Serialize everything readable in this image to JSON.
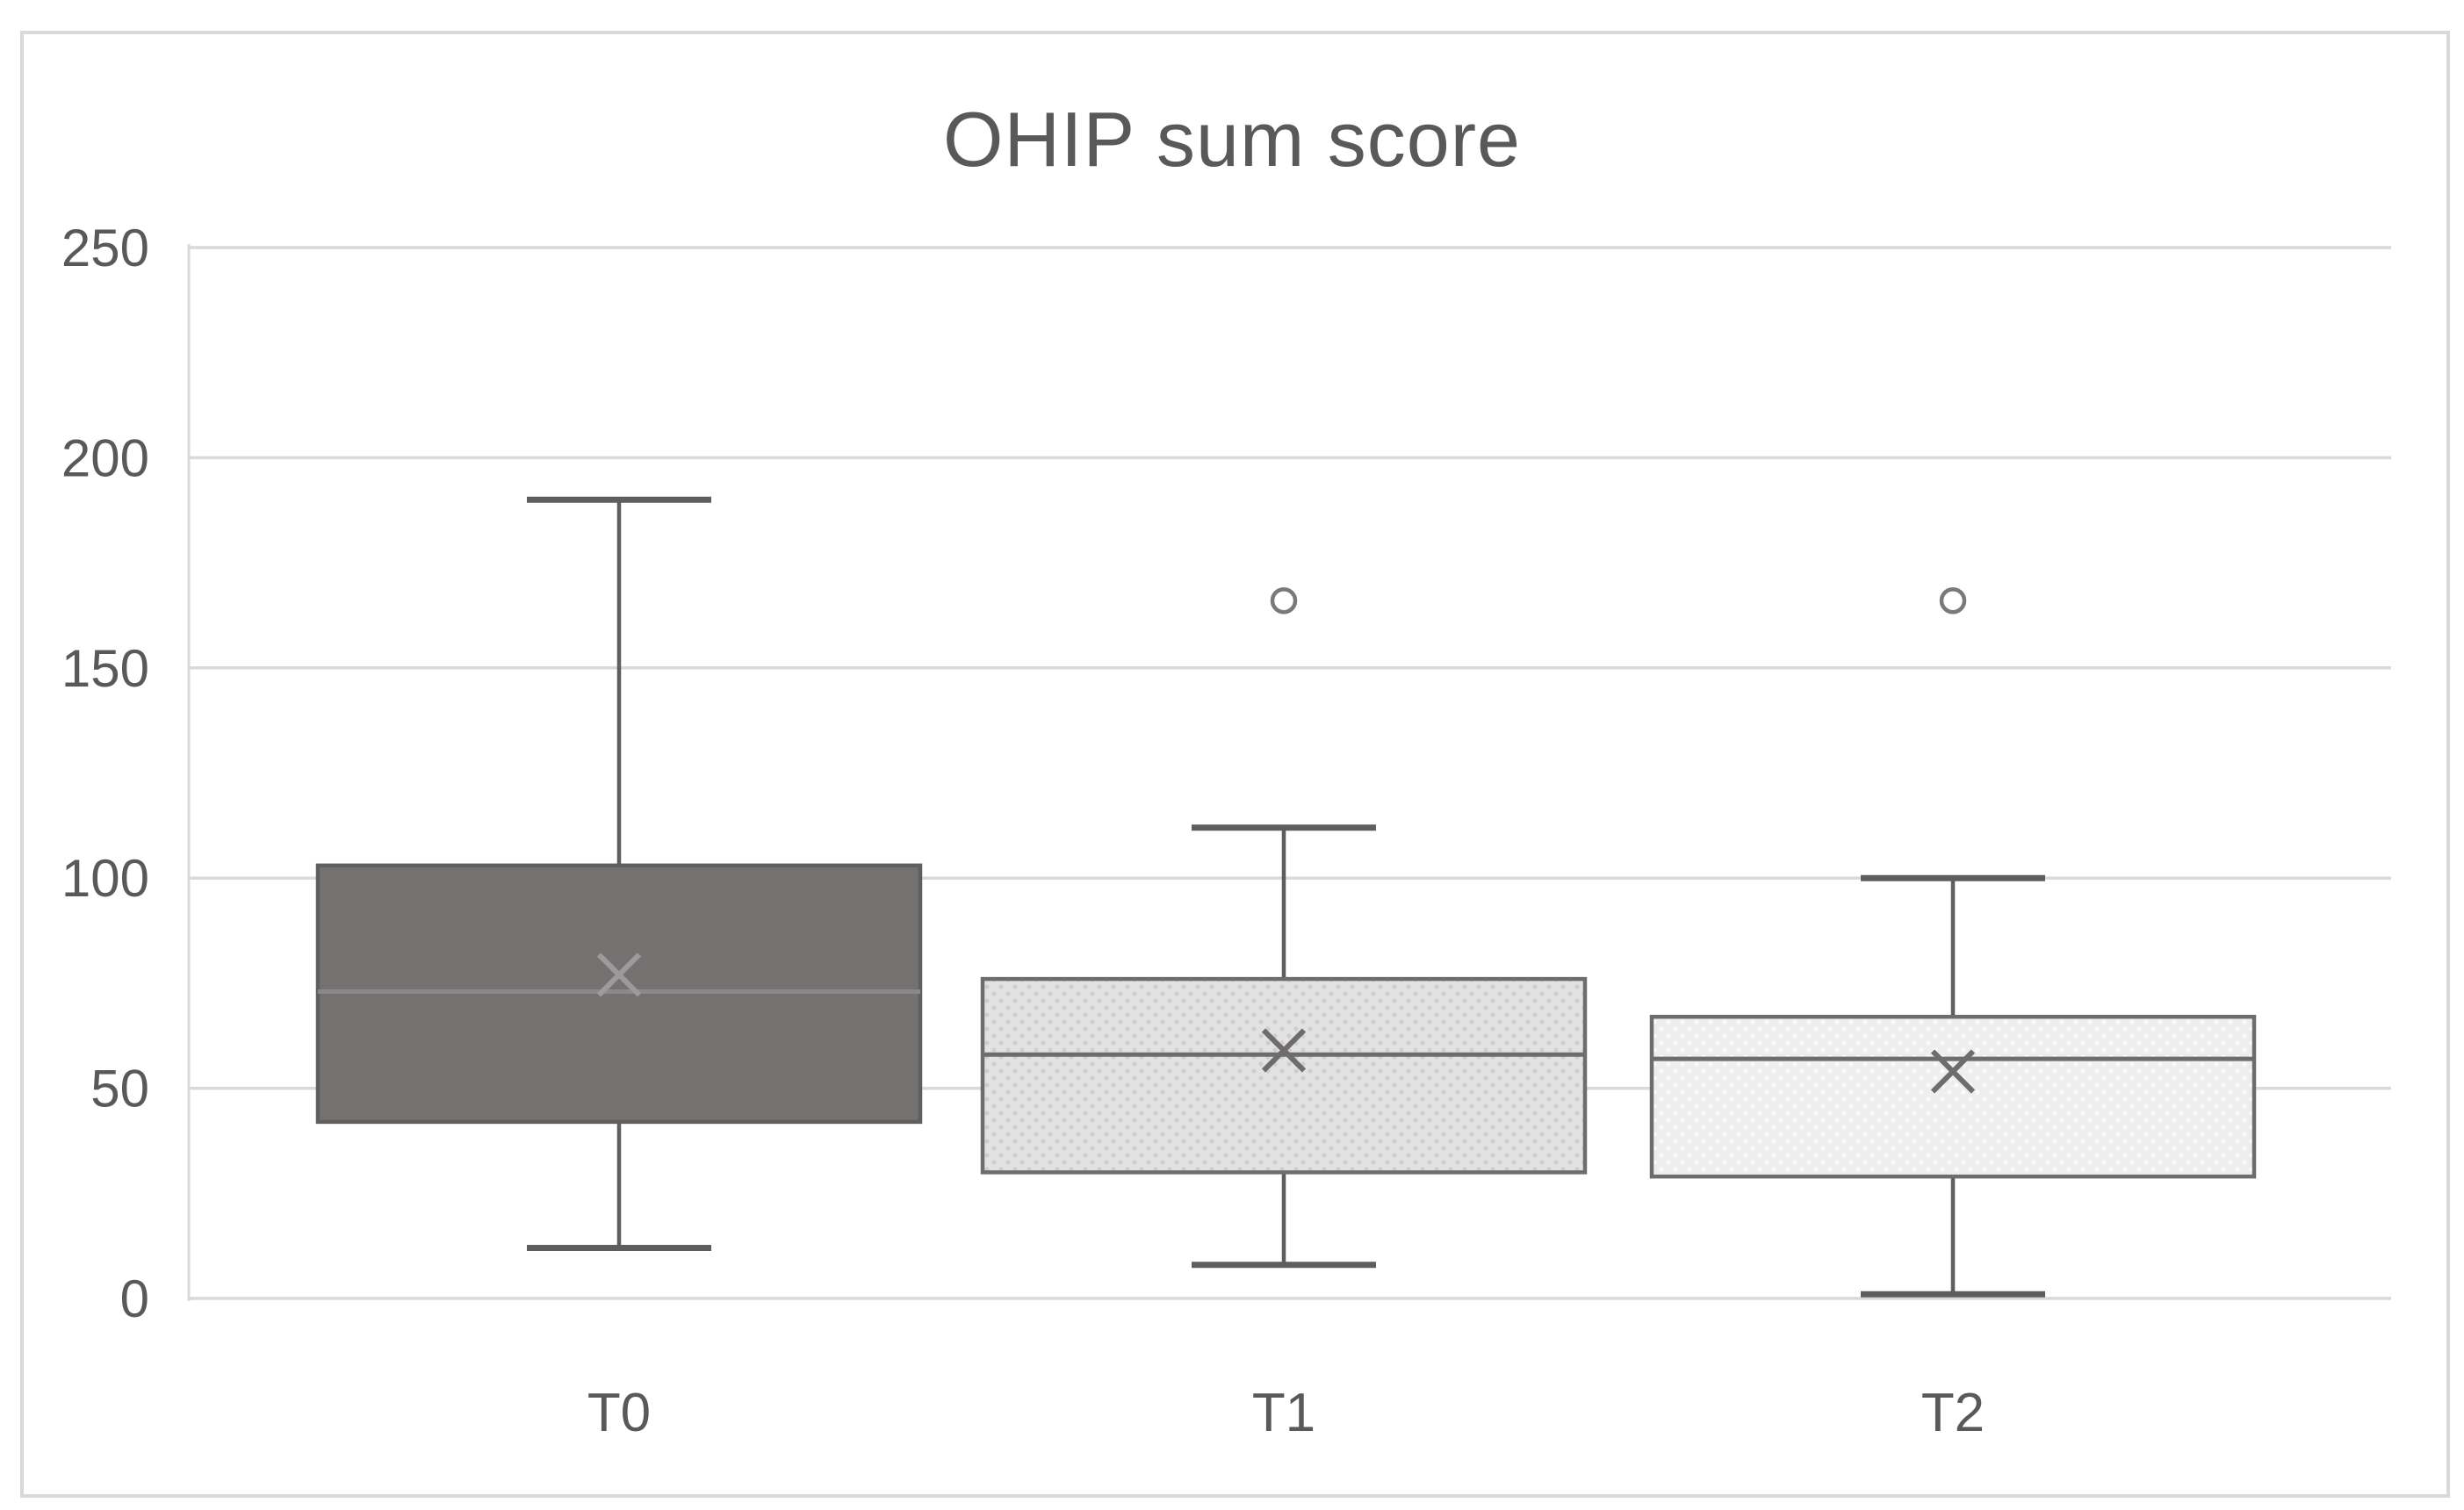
{
  "chart_data": {
    "type": "boxplot",
    "title": "OHIP sum score",
    "categories": [
      "T0",
      "T1",
      "T2"
    ],
    "xlabel": "",
    "ylabel": "",
    "ylim": [
      0,
      250
    ],
    "yticks": [
      0,
      50,
      100,
      150,
      200,
      250
    ],
    "grid": true,
    "legend": "none",
    "boxes": [
      {
        "label": "T0",
        "min": 12,
        "q1": 42,
        "median": 73,
        "mean": 77,
        "q3": 103,
        "max": 190,
        "outliers": [],
        "pattern": "solid",
        "fill": "#747171",
        "dot_color": "#747171",
        "border": "#615e5e",
        "median_color": "#8a8888",
        "mean_color": "#9c9a9a",
        "whisker_color": "#5f5d5d"
      },
      {
        "label": "T1",
        "min": 8,
        "q1": 30,
        "median": 58,
        "mean": 59,
        "q3": 76,
        "max": 112,
        "outliers": [
          166
        ],
        "pattern": "dots",
        "fill": "#e3e2e2",
        "dot_color": "#cfcdcd",
        "border": "#6f6c6c",
        "median_color": "#6f6c6c",
        "mean_color": "#6f6c6c",
        "whisker_color": "#5f5d5d"
      },
      {
        "label": "T2",
        "min": 1,
        "q1": 29,
        "median": 57,
        "mean": 54,
        "q3": 67,
        "max": 100,
        "outliers": [
          166
        ],
        "pattern": "dots",
        "fill": "#efeeee",
        "dot_color": "#fbfbfb",
        "border": "#6f6c6c",
        "median_color": "#6f6c6c",
        "mean_color": "#6f6c6c",
        "whisker_color": "#5f5d5d"
      }
    ],
    "outlier_value_shared": 166,
    "colors": {
      "gridline": "#d9d9d9",
      "axis_line": "#d9d9d9",
      "frame_border": "#d9d9d9",
      "text": "#595959",
      "outlier_stroke": "#7a7878",
      "outlier_fill": "#ffffff",
      "background": "#ffffff"
    }
  }
}
